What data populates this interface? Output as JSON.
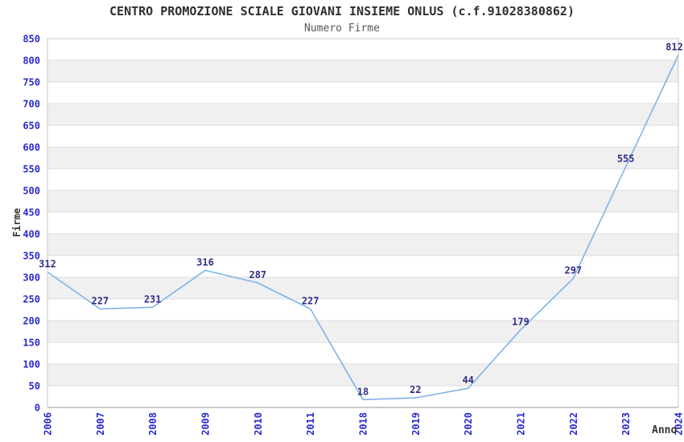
{
  "chart_data": {
    "type": "line",
    "title": "CENTRO PROMOZIONE SCIALE GIOVANI INSIEME ONLUS (c.f.91028380862)",
    "subtitle": "Numero Firme",
    "xlabel": "Anno",
    "ylabel": "Firme",
    "categories": [
      "2006",
      "2007",
      "2008",
      "2009",
      "2010",
      "2011",
      "2018",
      "2019",
      "2020",
      "2021",
      "2022",
      "2023",
      "2024"
    ],
    "values": [
      312,
      227,
      231,
      316,
      287,
      227,
      18,
      22,
      44,
      179,
      297,
      555,
      812
    ],
    "ylim": [
      0,
      850
    ],
    "ytick_step": 50,
    "grid": true,
    "legend": "none",
    "colors": {
      "line": "#7fb3e8",
      "tick_label": "#2a2ad2",
      "point_label": "#2e2e87",
      "band": "#f0f0f0",
      "grid": "#dcdcdc",
      "border": "#c8c8c8",
      "axis_line": "#9a9a9a",
      "title": "#2f2f2f",
      "subtitle": "#595959",
      "axis_title": "#333333"
    }
  }
}
